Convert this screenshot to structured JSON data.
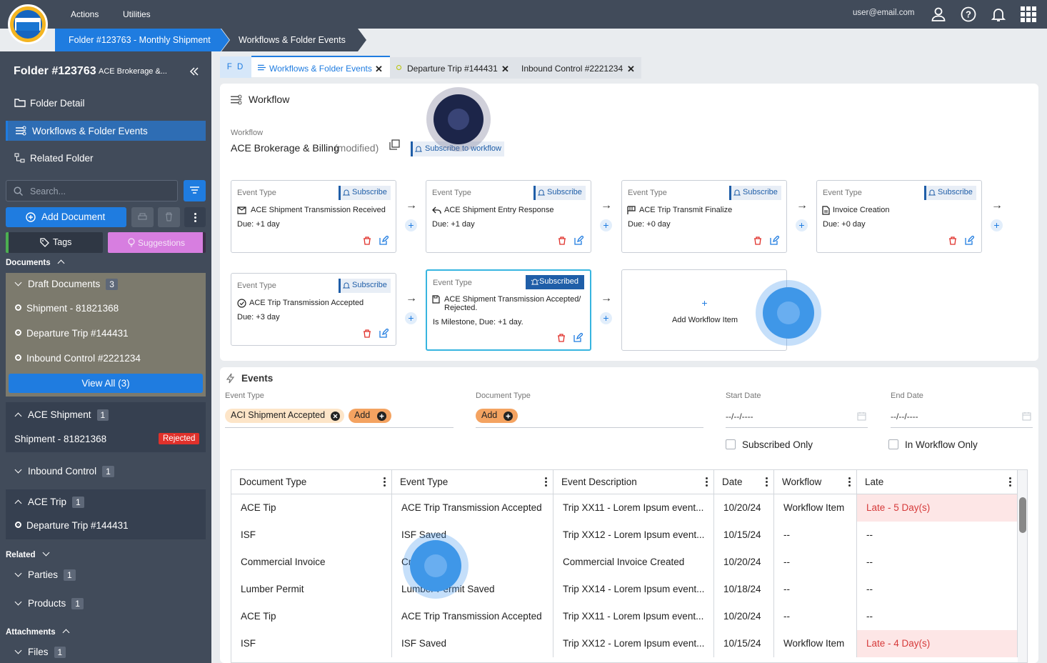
{
  "topbar": {
    "menus": [
      "Actions",
      "Utilities"
    ],
    "user_email": "user@email.com",
    "icons": [
      "user-icon",
      "help-icon",
      "bell-icon",
      "apps-grid-icon"
    ]
  },
  "breadcrumb": [
    "Folder #123763 - Monthly Shipment",
    "Workflows & Folder Events"
  ],
  "sidebar": {
    "title": "Folder #123763",
    "subtitle": "ACE Brokerage &...",
    "nav": [
      "Folder Detail",
      "Workflows & Folder Events",
      "Related Folder"
    ],
    "search_placeholder": "Search...",
    "add_document": "Add Document",
    "tags": "Tags",
    "suggestions": "Suggestions",
    "documents_label": "Documents",
    "draft": {
      "label": "Draft Documents",
      "count": "3",
      "items": [
        "Shipment - 81821368",
        "Departure Trip #144431",
        "Inbound Control #2221234"
      ],
      "view_all": "View All (3)"
    },
    "ace_shipment": {
      "label": "ACE Shipment",
      "count": "1",
      "item": "Shipment - 81821368",
      "status": "Rejected"
    },
    "inbound_control": {
      "label": "Inbound Control",
      "count": "1"
    },
    "ace_trip": {
      "label": "ACE Trip",
      "count": "1",
      "item": "Departure Trip #144431"
    },
    "related_label": "Related",
    "parties": {
      "label": "Parties",
      "count": "1"
    },
    "products": {
      "label": "Products",
      "count": "1"
    },
    "attachments_label": "Attachments",
    "files": {
      "label": "Files",
      "count": "1"
    }
  },
  "tabs": {
    "fd": "F D",
    "items": [
      "Workflows & Folder Events",
      "Departure Trip #144431",
      "Inbound Control #2221234"
    ]
  },
  "workflow": {
    "header": "Workflow",
    "field_label": "Workflow",
    "name": "ACE Brokerage & Billing",
    "modified": "(modified)",
    "subscribe_label": "Subscribe to workflow",
    "event_type_label": "Event Type",
    "subscribe": "Subscribe",
    "subscribed": "Subscribed",
    "cards": [
      {
        "name": "ACE Shipment Transmission Received",
        "due": "Due: +1 day"
      },
      {
        "name": "ACE Shipment Entry Response",
        "due": "Due: +1 day"
      },
      {
        "name": "ACE Trip Transmit Finalize",
        "due": "Due: +0 day"
      },
      {
        "name": "Invoice Creation",
        "due": "Due: +0 day"
      },
      {
        "name": "ACE Trip Transmission Accepted",
        "due": "Due: +3 day"
      },
      {
        "name": "ACE Shipment Transmission Accepted/ Rejected.",
        "due": "Is Milestone, Due: +1 day."
      }
    ],
    "add_item": "Add Workflow Item"
  },
  "events": {
    "header": "Events",
    "event_type_label": "Event Type",
    "event_chip": "ACI Shipment Accepted",
    "add": "Add",
    "document_type_label": "Document Type",
    "start_date_label": "Start Date",
    "end_date_label": "End Date",
    "date_placeholder": "--/--/----",
    "subscribed_only": "Subscribed Only",
    "in_workflow_only": "In Workflow Only",
    "columns": [
      "Document Type",
      "Event Type",
      "Event Description",
      "Date",
      "Workflow",
      "Late"
    ],
    "rows": [
      [
        "ACE Tip",
        "ACE Trip Transmission Accepted",
        "Trip XX11 - Lorem Ipsum event...",
        "10/20/24",
        "Workflow Item",
        "Late - 5 Day(s)"
      ],
      [
        "ISF",
        "ISF Saved",
        "Trip XX12 - Lorem Ipsum event...",
        "10/15/24",
        "--",
        "--"
      ],
      [
        "Commercial Invoice",
        "Cr",
        "Commercial Invoice Created",
        "10/20/24",
        "--",
        "--"
      ],
      [
        "Lumber Permit",
        "Lumber Permit Saved",
        "Trip XX14 - Lorem Ipsum event...",
        "10/18/24",
        "--",
        "--"
      ],
      [
        "ACE Tip",
        "ACE Trip Transmission Accepted",
        "Trip XX11 - Lorem Ipsum event...",
        "10/20/24",
        "--",
        "--"
      ],
      [
        "ISF",
        "ISF Saved",
        "Trip XX12 - Lorem Ipsum event...",
        "10/15/24",
        "Workflow Item",
        "Late - 4 Day(s)"
      ]
    ]
  },
  "colors": {
    "topbar": "#414b5a",
    "accent": "#1f7ce0",
    "late": "#d63a3a",
    "chip": "#f4a361"
  }
}
